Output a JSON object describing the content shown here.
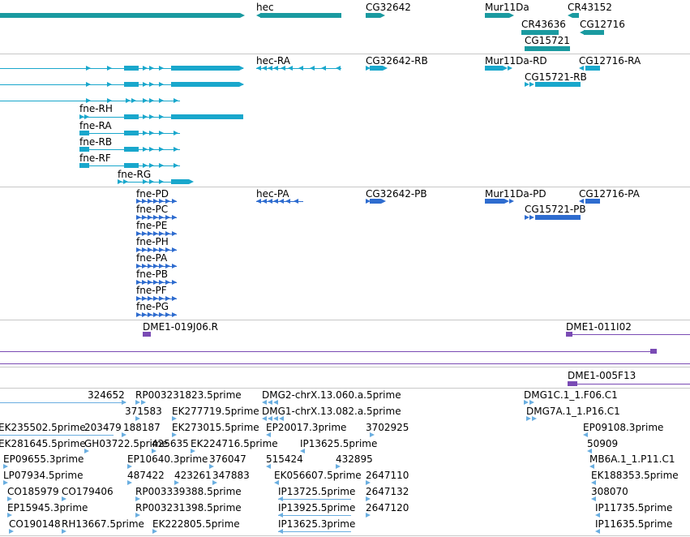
{
  "colors": {
    "gene": "#1a9aa0",
    "transcript": "#19a7cc",
    "protein": "#2e6ccf",
    "clone": "#7a4bb4",
    "est": "#6aaee0",
    "separator": "#c8c8c8"
  },
  "gene_track": {
    "labels": [
      "hec",
      "CG32642",
      "Mur11Da",
      "CR43152",
      "CR43636",
      "CG12716",
      "CG15721"
    ]
  },
  "transcript_track": {
    "labels": [
      "hec-RA",
      "CG32642-RB",
      "Mur11Da-RD",
      "CG12716-RA",
      "CG15721-RB",
      "fne-RH",
      "fne-RA",
      "fne-RB",
      "fne-RF",
      "fne-RG"
    ]
  },
  "protein_track": {
    "labels": [
      "fne-PD",
      "hec-PA",
      "CG32642-PB",
      "Mur11Da-PD",
      "CG12716-PA",
      "fne-PC",
      "CG15721-PB",
      "fne-PE",
      "fne-PH",
      "fne-PA",
      "fne-PB",
      "fne-PF",
      "fne-PG"
    ]
  },
  "clone_track": {
    "labels": [
      "DME1-019J06.R",
      "DME1-011I02",
      "DME1-005F13"
    ]
  },
  "est_track": {
    "labels": [
      "324652",
      "RP003231823.5prime",
      "DMG2-chrX.13.060.a.5prime",
      "DMG1C.1_1.F06.C1",
      "371583",
      "EK277719.5prime",
      "DMG1-chrX.13.082.a.5prime",
      "DMG7A.1_1.P16.C1",
      "EK235502.5prime",
      "203479",
      "188187",
      "EK273015.5prime",
      "EP20017.3prime",
      "3702925",
      "EP09108.3prime",
      "EK281645.5prime",
      "GH03722.5prime",
      "425635",
      "EK224716.5prime",
      "IP13625.5prime",
      "50909",
      "EP09655.3prime",
      "EP10640.3prime",
      "376047",
      "515424",
      "432895",
      "MB6A.1_1.P11.C1",
      "LP07934.5prime",
      "487422",
      "423261",
      "347883",
      "EK056607.5prime",
      "2647110",
      "EK188353.5prime",
      "CO185979",
      "CO179406",
      "RP003339388.5prime",
      "IP13725.5prime",
      "2647132",
      "308070",
      "EP15945.3prime",
      "RP003231398.5prime",
      "IP13925.5prime",
      "2647120",
      "IP11735.5prime",
      "CO190148",
      "RH13667.5prime",
      "EK222805.5prime",
      "IP13625.3prime",
      "IP11635.5prime"
    ]
  }
}
